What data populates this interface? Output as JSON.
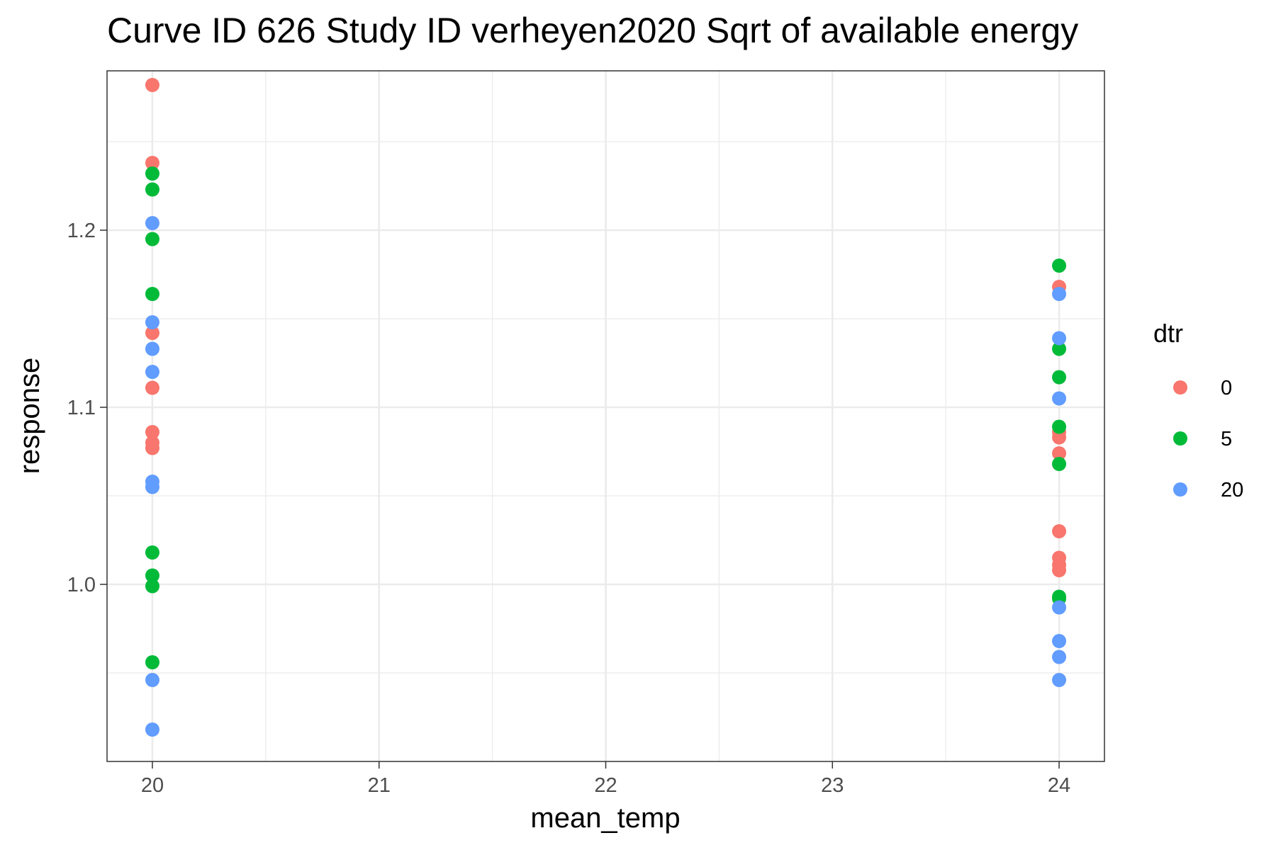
{
  "chart_data": {
    "type": "scatter",
    "title": "Curve ID 626 Study ID verheyen2020 Sqrt of available energy",
    "xlabel": "mean_temp",
    "ylabel": "response",
    "xlim": [
      19.8,
      24.2
    ],
    "ylim": [
      0.9,
      1.29
    ],
    "x_ticks": [
      20,
      21,
      22,
      23,
      24
    ],
    "x_tick_labels": [
      "20",
      "21",
      "22",
      "23",
      "24"
    ],
    "y_ticks": [
      1.0,
      1.1,
      1.2
    ],
    "y_tick_labels": [
      "1.0",
      "1.1",
      "1.2"
    ],
    "grid": true,
    "legend": {
      "title": "dtr",
      "position": "right"
    },
    "series": [
      {
        "name": "0",
        "color": "#F8766D",
        "points": [
          {
            "x": 20,
            "y": 1.282
          },
          {
            "x": 20,
            "y": 1.238
          },
          {
            "x": 20,
            "y": 1.142
          },
          {
            "x": 20,
            "y": 1.111
          },
          {
            "x": 20,
            "y": 1.086
          },
          {
            "x": 20,
            "y": 1.08
          },
          {
            "x": 20,
            "y": 1.077
          },
          {
            "x": 24,
            "y": 1.168
          },
          {
            "x": 24,
            "y": 1.086
          },
          {
            "x": 24,
            "y": 1.083
          },
          {
            "x": 24,
            "y": 1.074
          },
          {
            "x": 24,
            "y": 1.03
          },
          {
            "x": 24,
            "y": 1.015
          },
          {
            "x": 24,
            "y": 1.011
          },
          {
            "x": 24,
            "y": 1.008
          }
        ]
      },
      {
        "name": "5",
        "color": "#00BA38",
        "points": [
          {
            "x": 20,
            "y": 1.232
          },
          {
            "x": 20,
            "y": 1.223
          },
          {
            "x": 20,
            "y": 1.195
          },
          {
            "x": 20,
            "y": 1.164
          },
          {
            "x": 20,
            "y": 1.018
          },
          {
            "x": 20,
            "y": 1.005
          },
          {
            "x": 20,
            "y": 0.999
          },
          {
            "x": 20,
            "y": 0.956
          },
          {
            "x": 24,
            "y": 1.18
          },
          {
            "x": 24,
            "y": 1.133
          },
          {
            "x": 24,
            "y": 1.117
          },
          {
            "x": 24,
            "y": 1.089
          },
          {
            "x": 24,
            "y": 1.068
          },
          {
            "x": 24,
            "y": 0.993
          },
          {
            "x": 24,
            "y": 0.992
          }
        ]
      },
      {
        "name": "20",
        "color": "#619CFF",
        "points": [
          {
            "x": 20,
            "y": 1.204
          },
          {
            "x": 20,
            "y": 1.148
          },
          {
            "x": 20,
            "y": 1.133
          },
          {
            "x": 20,
            "y": 1.12
          },
          {
            "x": 20,
            "y": 1.058
          },
          {
            "x": 20,
            "y": 1.055
          },
          {
            "x": 20,
            "y": 0.946
          },
          {
            "x": 20,
            "y": 0.918
          },
          {
            "x": 24,
            "y": 1.164
          },
          {
            "x": 24,
            "y": 1.139
          },
          {
            "x": 24,
            "y": 1.105
          },
          {
            "x": 24,
            "y": 0.987
          },
          {
            "x": 24,
            "y": 0.968
          },
          {
            "x": 24,
            "y": 0.959
          },
          {
            "x": 24,
            "y": 0.946
          }
        ]
      }
    ]
  }
}
